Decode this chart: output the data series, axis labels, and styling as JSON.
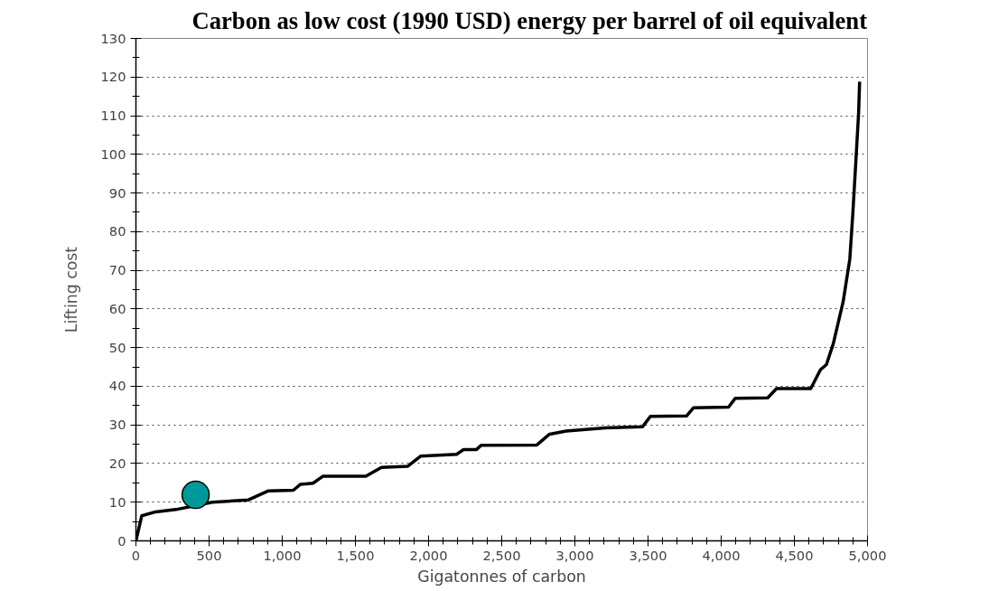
{
  "chart_data": {
    "type": "line",
    "title": "Carbon as low cost (1990 USD) energy per barrel of oil equivalent",
    "xlabel": "Gigatonnes of carbon",
    "ylabel": "Lifting cost",
    "series": [
      {
        "color": "#000000",
        "x": [
          0,
          40,
          134,
          274,
          521,
          769,
          902,
          1076,
          1123,
          1210,
          1277,
          1571,
          1678,
          1858,
          1945,
          2192,
          2239,
          2326,
          2359,
          2740,
          2827,
          2941,
          3208,
          3462,
          3516,
          3763,
          3810,
          4050,
          4097,
          4318,
          4378,
          4612,
          4679,
          4719,
          4766,
          4833,
          4879,
          4899,
          4920,
          4939,
          4946
        ],
        "values": [
          0,
          6.5,
          7.5,
          8.1,
          10.0,
          10.6,
          12.9,
          13.1,
          14.6,
          14.9,
          16.7,
          16.7,
          19.0,
          19.3,
          21.9,
          22.4,
          23.6,
          23.6,
          24.7,
          24.8,
          27.6,
          28.4,
          29.2,
          29.5,
          32.2,
          32.3,
          34.4,
          34.6,
          36.9,
          37.0,
          39.4,
          39.4,
          44.3,
          45.6,
          51.0,
          61.8,
          72.9,
          84.4,
          98.0,
          110.6,
          118.8
        ]
      },
      {
        "type": "scatter",
        "color": "#009999",
        "marker": "circle",
        "x": [
          408
        ],
        "values": [
          11.9
        ]
      }
    ],
    "xlim": [
      0,
      5000
    ],
    "ylim": [
      0,
      130
    ],
    "xticks": [
      0,
      500,
      {
        "value": 1000,
        "label": "1,000"
      },
      {
        "value": 1500,
        "label": "1,500"
      },
      {
        "value": 2000,
        "label": "2,000"
      },
      {
        "value": 2500,
        "label": "2,500"
      },
      {
        "value": 3000,
        "label": "3,000"
      },
      {
        "value": 3500,
        "label": "3,500"
      },
      {
        "value": 4000,
        "label": "4,000"
      },
      {
        "value": 4500,
        "label": "4,500"
      },
      {
        "value": 5000,
        "label": "5,000"
      }
    ],
    "yticks": [
      0,
      10,
      20,
      30,
      40,
      50,
      60,
      70,
      80,
      90,
      100,
      110,
      120,
      130
    ],
    "grid": "y",
    "marker": "none",
    "line_style": "solid"
  }
}
